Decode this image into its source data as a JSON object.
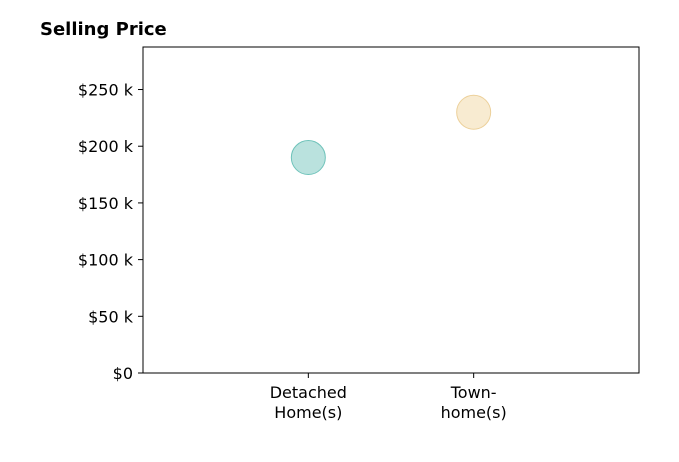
{
  "chart_data": {
    "type": "scatter",
    "title": "Selling Price",
    "xlabel": "",
    "ylabel": "",
    "categories": [
      [
        "Detached",
        "Home(s)"
      ],
      [
        "Town-",
        "home(s)"
      ]
    ],
    "x_range": [
      0,
      3
    ],
    "x_positions": [
      1,
      2
    ],
    "values": [
      190000,
      230000
    ],
    "ylim": [
      0,
      287500
    ],
    "yticks": [
      0,
      50000,
      100000,
      150000,
      200000,
      250000
    ],
    "ytick_labels": [
      "$0",
      "$50 k",
      "$100 k",
      "$150 k",
      "$200 k",
      "$250 k"
    ],
    "grid": false,
    "legend": "none",
    "point_colors": [
      "#9dd6d0",
      "#f5e3bd"
    ],
    "point_edge_colors": [
      "#6fc3ba",
      "#ecd09a"
    ]
  }
}
